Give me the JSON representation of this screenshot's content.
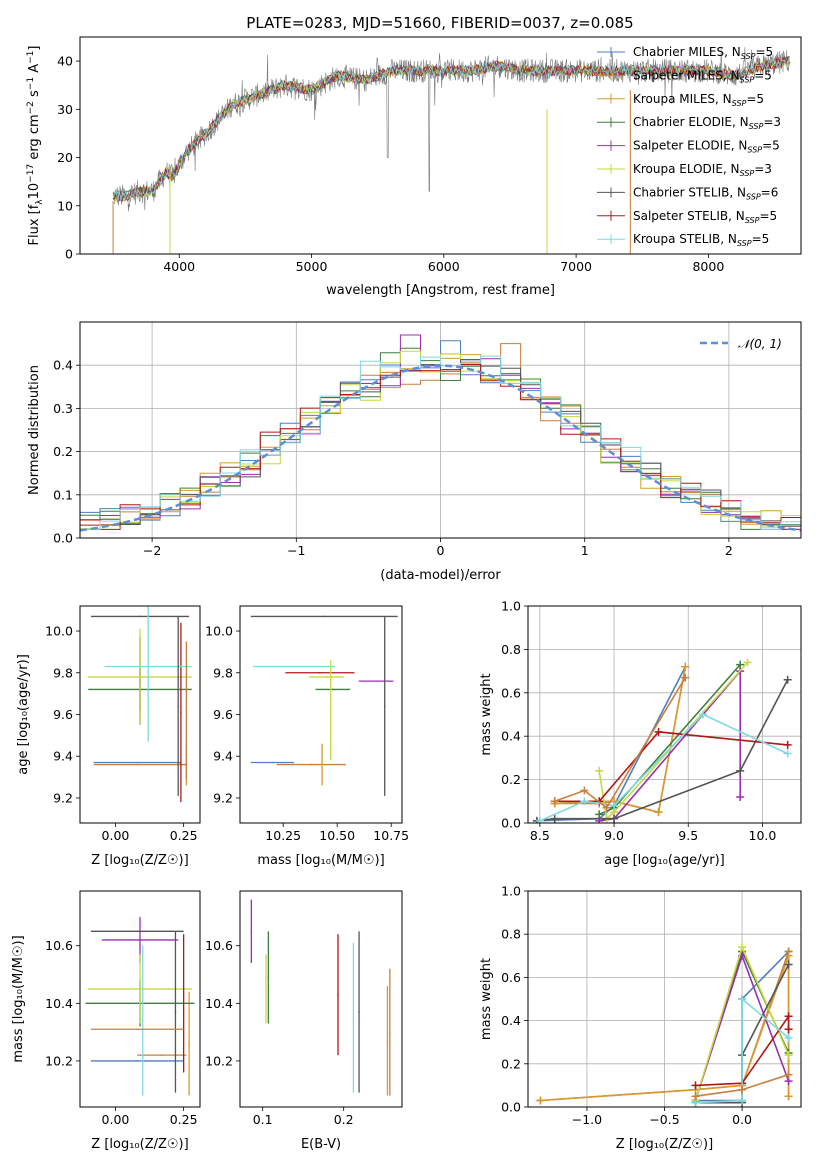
{
  "title": "PLATE=0283, MJD=51660, FIBERID=0037, z=0.085",
  "models": [
    {
      "name": "Chabrier MILES",
      "n": "5",
      "color": "#4f7fbf"
    },
    {
      "name": "Salpeter MILES",
      "n": "5",
      "color": "#c87f3f"
    },
    {
      "name": "Kroupa MILES",
      "n": "5",
      "color": "#d89a30"
    },
    {
      "name": "Chabrier ELODIE",
      "n": "3",
      "color": "#3f7f3f"
    },
    {
      "name": "Salpeter ELODIE",
      "n": "5",
      "color": "#9a2fb0"
    },
    {
      "name": "Kroupa ELODIE",
      "n": "3",
      "color": "#c8d840"
    },
    {
      "name": "Chabrier STELIB",
      "n": "6",
      "color": "#555555"
    },
    {
      "name": "Salpeter STELIB",
      "n": "5",
      "color": "#b01818"
    },
    {
      "name": "Kroupa STELIB",
      "n": "5",
      "color": "#80d8e0"
    }
  ],
  "legend_suffix": "N",
  "legend_sub": "SSP",
  "chart_data": [
    {
      "id": "spectrum",
      "type": "line",
      "xlabel": "wavelength [Angstrom, rest frame]",
      "ylabel": "Flux [f",
      "ylabel_parts": {
        "lam": "λ",
        "exp": "−17",
        "units": " erg cm",
        "e2": "−2",
        "s": " s",
        "e1": "−1",
        "A": " A",
        "ea": "−1",
        "end": "]",
        "ten": "10"
      },
      "xlim": [
        3250,
        8700
      ],
      "ylim": [
        0,
        45
      ],
      "xticks": [
        4000,
        5000,
        6000,
        7000,
        8000
      ],
      "yticks": [
        0,
        10,
        20,
        30,
        40
      ],
      "continuum": {
        "x": [
          3500,
          3600,
          3700,
          3800,
          3900,
          3950,
          4050,
          4200,
          4400,
          4600,
          4800,
          5000,
          5200,
          5400,
          5600,
          5800,
          6000,
          6200,
          6400,
          6600,
          6800,
          7000,
          7200,
          7400,
          7600,
          7800,
          8000,
          8200,
          8400,
          8600
        ],
        "y": [
          12,
          12,
          13,
          13,
          17,
          16,
          21,
          25,
          31,
          33,
          35,
          34,
          37,
          36,
          38,
          38,
          38,
          38,
          39,
          38,
          38,
          38,
          38,
          38,
          38,
          38,
          38,
          37,
          39,
          40
        ]
      }
    },
    {
      "id": "residuals",
      "type": "histogram",
      "xlabel": "(data-model)/error",
      "ylabel": "Normed distribution",
      "xlim": [
        -2.5,
        2.5
      ],
      "ylim": [
        0,
        0.5
      ],
      "xticks": [
        -2,
        -1,
        0,
        1,
        2
      ],
      "xtick_labels": [
        "−2",
        "−1",
        "0",
        "1",
        "2"
      ],
      "yticks": [
        0.0,
        0.1,
        0.2,
        0.3,
        0.4
      ],
      "ytick_labels": [
        "0.0",
        "0.1",
        "0.2",
        "0.3",
        "0.4"
      ],
      "legend": "𝒩(0, 1)",
      "gaussian": {
        "mu": 0,
        "sigma": 1,
        "color": "#5b8fd6"
      }
    },
    {
      "id": "age_vs_Z",
      "type": "errorbar",
      "xlabel": "Z [log₁₀(Z/Z☉)]",
      "ylabel": "age  [log₁₀(age/yr)]",
      "xlim": [
        -0.13,
        0.31
      ],
      "ylim": [
        9.08,
        10.12
      ],
      "xticks": [
        0.0,
        0.25
      ],
      "xtick_labels": [
        "0.00",
        "0.25"
      ],
      "yticks": [
        9.2,
        9.4,
        9.6,
        9.8,
        10.0
      ],
      "ytick_labels": [
        "9.2",
        "9.4",
        "9.6",
        "9.8",
        "10.0"
      ],
      "points": [
        {
          "m": 0,
          "x": 0.08,
          "y": 9.37,
          "xe": 0.16,
          "ye": 0.0
        },
        {
          "m": 1,
          "x": 0.09,
          "y": 9.36,
          "xe": 0.17,
          "ye": 0.0
        },
        {
          "m": 2,
          "x": 0.26,
          "y": 9.36,
          "xe": 0.0,
          "ye": 0.1
        },
        {
          "m": 3,
          "x": 0.09,
          "y": 9.72,
          "xe": 0.19,
          "ye": 0.1
        },
        {
          "m": 4,
          "x": 0.09,
          "y": 9.76,
          "xe": 0.0,
          "ye": 0.21
        },
        {
          "m": 5,
          "x": 0.09,
          "y": 9.78,
          "xe": 0.19,
          "ye": 0.23
        },
        {
          "m": 6,
          "x": 0.09,
          "y": 10.07,
          "xe": 0.18,
          "ye": 0.0
        },
        {
          "m": 7,
          "x": 0.24,
          "y": 9.61,
          "xe": 0.0,
          "ye": 0.43
        },
        {
          "m": 8,
          "x": 0.12,
          "y": 9.83,
          "xe": 0.16,
          "ye": 0.36
        },
        {
          "m": 6,
          "x": 0.23,
          "y": 9.64,
          "xe": 0.0,
          "ye": 0.43
        },
        {
          "m": 1,
          "x": 0.26,
          "y": 9.62,
          "xe": 0.0,
          "ye": 0.33
        }
      ]
    },
    {
      "id": "age_vs_mass",
      "type": "errorbar",
      "xlabel": "mass [log₁₀(M/M☉)]",
      "ylabel": "",
      "xlim": [
        10.05,
        10.8
      ],
      "ylim": [
        9.08,
        10.12
      ],
      "xticks": [
        10.25,
        10.5,
        10.75
      ],
      "xtick_labels": [
        "10.25",
        "10.50",
        "10.75"
      ],
      "yticks": [
        9.2,
        9.4,
        9.6,
        9.8,
        10.0
      ],
      "ytick_labels": [
        "9.2",
        "9.4",
        "9.6",
        "9.8",
        "10.0"
      ],
      "points": [
        {
          "m": 0,
          "x": 10.2,
          "y": 9.37,
          "xe": 0.1,
          "ye": 0.0
        },
        {
          "m": 1,
          "x": 10.38,
          "y": 9.36,
          "xe": 0.16,
          "ye": 0.0
        },
        {
          "m": 2,
          "x": 10.43,
          "y": 9.36,
          "xe": 0.0,
          "ye": 0.1
        },
        {
          "m": 3,
          "x": 10.48,
          "y": 9.72,
          "xe": 0.08,
          "ye": 0.0
        },
        {
          "m": 4,
          "x": 10.68,
          "y": 9.76,
          "xe": 0.08,
          "ye": 0.0
        },
        {
          "m": 5,
          "x": 10.45,
          "y": 9.78,
          "xe": 0.08,
          "ye": 0.0
        },
        {
          "m": 6,
          "x": 10.44,
          "y": 10.07,
          "xe": 0.34,
          "ye": 0.0
        },
        {
          "m": 7,
          "x": 10.42,
          "y": 9.8,
          "xe": 0.16,
          "ye": 0.0
        },
        {
          "m": 8,
          "x": 10.3,
          "y": 9.83,
          "xe": 0.19,
          "ye": 0.0
        },
        {
          "m": 6,
          "x": 10.72,
          "y": 9.64,
          "xe": 0.0,
          "ye": 0.43
        },
        {
          "m": 5,
          "x": 10.47,
          "y": 9.62,
          "xe": 0.0,
          "ye": 0.24
        }
      ]
    },
    {
      "id": "weight_vs_age",
      "type": "line",
      "xlabel": "age  [log₁₀(age/yr)]",
      "ylabel": "mass weight",
      "xlim": [
        8.42,
        10.26
      ],
      "ylim": [
        0,
        1
      ],
      "xticks": [
        8.5,
        9.0,
        9.5,
        10.0
      ],
      "xtick_labels": [
        "8.5",
        "9.0",
        "9.5",
        "10.0"
      ],
      "yticks": [
        0,
        0.2,
        0.4,
        0.6,
        0.8,
        1.0
      ],
      "ytick_labels": [
        "0.0",
        "0.2",
        "0.4",
        "0.6",
        "0.8",
        "1.0"
      ],
      "series": [
        {
          "m": 0,
          "x": [
            8.48,
            8.9,
            9.0,
            9.48
          ],
          "y": [
            0.01,
            0.02,
            0.08,
            0.72
          ]
        },
        {
          "m": 1,
          "x": [
            8.6,
            8.9,
            9.0,
            9.3,
            9.48
          ],
          "y": [
            0.09,
            0.09,
            0.1,
            0.05,
            0.72
          ]
        },
        {
          "m": 2,
          "x": [
            8.6,
            8.9,
            9.0,
            9.3,
            9.48
          ],
          "y": [
            0.09,
            0.1,
            0.1,
            0.05,
            0.72
          ]
        },
        {
          "m": 3,
          "x": [
            8.9,
            9.0,
            9.85
          ],
          "y": [
            0.04,
            0.07,
            0.73
          ]
        },
        {
          "m": 4,
          "x": [
            8.9,
            9.0,
            9.85,
            9.85
          ],
          "y": [
            0.01,
            0.02,
            0.7,
            0.12
          ]
        },
        {
          "m": 5,
          "x": [
            8.9,
            8.95,
            9.0,
            9.9
          ],
          "y": [
            0.24,
            0.02,
            0.05,
            0.74
          ]
        },
        {
          "m": 6,
          "x": [
            8.48,
            8.6,
            9.0,
            9.85,
            10.17
          ],
          "y": [
            0.01,
            0.02,
            0.02,
            0.24,
            0.66
          ]
        },
        {
          "m": 7,
          "x": [
            8.6,
            8.9,
            9.3,
            10.17
          ],
          "y": [
            0.1,
            0.1,
            0.42,
            0.36
          ]
        },
        {
          "m": 8,
          "x": [
            8.5,
            8.8,
            9.0,
            9.6,
            10.17
          ],
          "y": [
            0.01,
            0.1,
            0.08,
            0.5,
            0.32
          ]
        },
        {
          "m": 1,
          "x": [
            8.6,
            8.8,
            8.95,
            9.48
          ],
          "y": [
            0.1,
            0.15,
            0.07,
            0.67
          ]
        }
      ]
    },
    {
      "id": "mass_vs_Z",
      "type": "errorbar",
      "xlabel": "Z [log₁₀(Z/Z☉)]",
      "ylabel": "mass [log₁₀(M/M☉)]",
      "xlim": [
        -0.13,
        0.31
      ],
      "ylim": [
        10.04,
        10.79
      ],
      "xticks": [
        0.0,
        0.25
      ],
      "xtick_labels": [
        "0.00",
        "0.25"
      ],
      "yticks": [
        10.2,
        10.4,
        10.6
      ],
      "ytick_labels": [
        "10.2",
        "10.4",
        "10.6"
      ],
      "points": [
        {
          "m": 0,
          "x": 0.08,
          "y": 10.2,
          "xe": 0.17,
          "ye": 0.0
        },
        {
          "m": 1,
          "x": 0.17,
          "y": 10.22,
          "xe": 0.09,
          "ye": 0.0
        },
        {
          "m": 2,
          "x": 0.27,
          "y": 10.26,
          "xe": 0.0,
          "ye": 0.18
        },
        {
          "m": 3,
          "x": 0.09,
          "y": 10.4,
          "xe": 0.2,
          "ye": 0.08
        },
        {
          "m": 4,
          "x": 0.09,
          "y": 10.62,
          "xe": 0.14,
          "ye": 0.08
        },
        {
          "m": 5,
          "x": 0.09,
          "y": 10.45,
          "xe": 0.19,
          "ye": 0.12
        },
        {
          "m": 6,
          "x": 0.08,
          "y": 10.65,
          "xe": 0.17,
          "ye": 0.0
        },
        {
          "m": 7,
          "x": 0.25,
          "y": 10.4,
          "xe": 0.0,
          "ye": 0.24
        },
        {
          "m": 8,
          "x": 0.1,
          "y": 10.34,
          "xe": 0.0,
          "ye": 0.26
        },
        {
          "m": 6,
          "x": 0.22,
          "y": 10.37,
          "xe": 0.0,
          "ye": 0.28
        },
        {
          "m": 1,
          "x": 0.08,
          "y": 10.31,
          "xe": 0.17,
          "ye": 0.0
        }
      ]
    },
    {
      "id": "mass_vs_EBV",
      "type": "errorbar",
      "xlabel": "E(B-V)",
      "ylabel": "",
      "xlim": [
        0.072,
        0.272
      ],
      "ylim": [
        10.04,
        10.79
      ],
      "xticks": [
        0.1,
        0.2
      ],
      "xtick_labels": [
        "0.1",
        "0.2"
      ],
      "yticks": [
        10.2,
        10.4,
        10.6
      ],
      "ytick_labels": [
        "10.2",
        "10.4",
        "10.6"
      ],
      "points": [
        {
          "m": 4,
          "x": 0.086,
          "y": 10.65,
          "xe": 0.0,
          "ye": 0.11
        },
        {
          "m": 3,
          "x": 0.107,
          "y": 10.49,
          "xe": 0.0,
          "ye": 0.16
        },
        {
          "m": 5,
          "x": 0.104,
          "y": 10.45,
          "xe": 0.0,
          "ye": 0.12
        },
        {
          "m": 7,
          "x": 0.193,
          "y": 10.43,
          "xe": 0.0,
          "ye": 0.21
        },
        {
          "m": 8,
          "x": 0.212,
          "y": 10.35,
          "xe": 0.0,
          "ye": 0.26
        },
        {
          "m": 6,
          "x": 0.219,
          "y": 10.37,
          "xe": 0.0,
          "ye": 0.28
        },
        {
          "m": 2,
          "x": 0.254,
          "y": 10.27,
          "xe": 0.0,
          "ye": 0.19
        },
        {
          "m": 1,
          "x": 0.257,
          "y": 10.3,
          "xe": 0.0,
          "ye": 0.22
        }
      ]
    },
    {
      "id": "weight_vs_Z",
      "type": "line",
      "xlabel": "Z [log₁₀(Z/Z☉)]",
      "ylabel": "mass weight",
      "xlim": [
        -1.38,
        0.38
      ],
      "ylim": [
        0,
        1
      ],
      "xticks": [
        -1.0,
        -0.5,
        0.0
      ],
      "xtick_labels": [
        "−1.0",
        "−0.5",
        "0.0"
      ],
      "yticks": [
        0,
        0.2,
        0.4,
        0.6,
        0.8,
        1.0
      ],
      "ytick_labels": [
        "0.0",
        "0.2",
        "0.4",
        "0.6",
        "0.8",
        "1.0"
      ],
      "series": [
        {
          "m": 0,
          "x": [
            -0.3,
            0.0,
            0.0,
            0.3
          ],
          "y": [
            0.03,
            0.03,
            0.5,
            0.72
          ]
        },
        {
          "m": 1,
          "x": [
            -1.3,
            -0.3,
            0.0,
            0.3,
            0.3
          ],
          "y": [
            0.03,
            0.08,
            0.1,
            0.72,
            0.05
          ]
        },
        {
          "m": 2,
          "x": [
            -1.3,
            -0.3,
            0.0,
            0.3,
            0.3
          ],
          "y": [
            0.03,
            0.08,
            0.1,
            0.7,
            0.05
          ]
        },
        {
          "m": 3,
          "x": [
            -0.3,
            0.0,
            0.3
          ],
          "y": [
            0.03,
            0.72,
            0.25
          ]
        },
        {
          "m": 4,
          "x": [
            -0.3,
            0.0,
            0.3
          ],
          "y": [
            0.03,
            0.7,
            0.12
          ]
        },
        {
          "m": 5,
          "x": [
            -0.3,
            0.0,
            0.3
          ],
          "y": [
            0.03,
            0.74,
            0.24
          ]
        },
        {
          "m": 6,
          "x": [
            -0.3,
            0.0,
            0.0,
            0.3
          ],
          "y": [
            0.02,
            0.02,
            0.24,
            0.66
          ]
        },
        {
          "m": 7,
          "x": [
            -0.3,
            0.0,
            0.3,
            0.3
          ],
          "y": [
            0.1,
            0.11,
            0.42,
            0.36
          ]
        },
        {
          "m": 8,
          "x": [
            -0.3,
            0.0,
            0.0,
            0.3
          ],
          "y": [
            0.02,
            0.03,
            0.5,
            0.32
          ]
        },
        {
          "m": 1,
          "x": [
            -0.3,
            0.0,
            0.3
          ],
          "y": [
            0.05,
            0.08,
            0.15
          ]
        }
      ]
    }
  ]
}
